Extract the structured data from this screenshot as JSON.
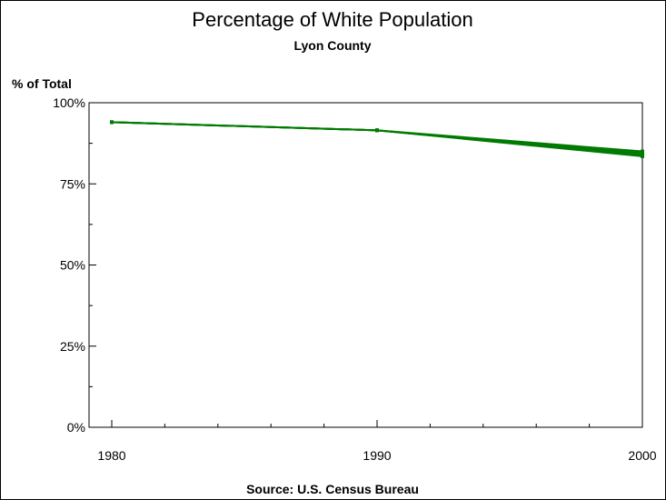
{
  "chart_data": {
    "type": "line",
    "title": "Percentage of White Population",
    "subtitle": "Lyon County",
    "ylabel": "% of Total",
    "xlabel": "",
    "footnote": "Source: U.S. Census Bureau",
    "x": [
      1980,
      1990,
      2000
    ],
    "x_tick_labels": [
      "1980",
      "1990",
      "2000"
    ],
    "y_tick_labels": [
      "0%",
      "25%",
      "50%",
      "75%",
      "100%"
    ],
    "y_ticks": [
      0,
      25,
      50,
      75,
      100
    ],
    "xlim": [
      1980,
      2000
    ],
    "ylim": [
      0,
      100
    ],
    "grid": false,
    "series": [
      {
        "values": [
          94,
          91.5,
          85
        ]
      },
      {
        "values": [
          94,
          91.5,
          84.5
        ]
      },
      {
        "values": [
          94,
          91.5,
          84
        ]
      },
      {
        "values": [
          94,
          91.5,
          83.5
        ]
      }
    ],
    "colors": {
      "line": "#007a00",
      "axis": "#000000"
    }
  }
}
